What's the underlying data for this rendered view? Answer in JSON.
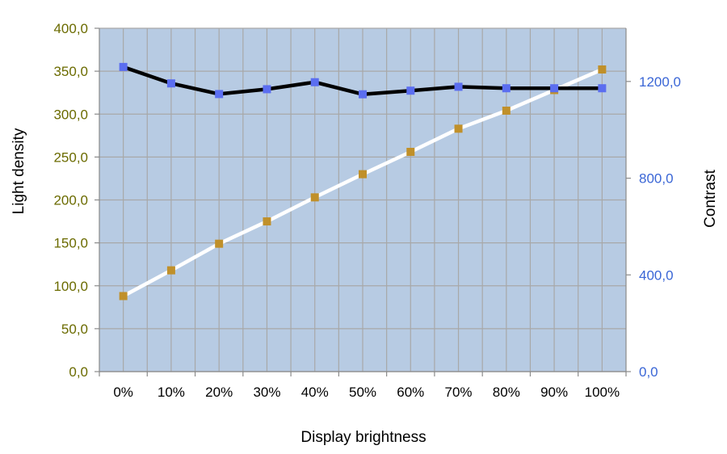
{
  "chart_data": {
    "type": "line",
    "categories": [
      "0%",
      "10%",
      "20%",
      "30%",
      "40%",
      "50%",
      "60%",
      "70%",
      "80%",
      "90%",
      "100%"
    ],
    "xlabel": "Display brightness",
    "y_left": {
      "label": "Light density",
      "range": [
        0,
        400
      ],
      "ticks": [
        0,
        50,
        100,
        150,
        200,
        250,
        300,
        350,
        400
      ],
      "tick_labels": [
        "0,0",
        "50,0",
        "100,0",
        "150,0",
        "200,0",
        "250,0",
        "300,0",
        "350,0",
        "400,0"
      ],
      "tick_color": "#6b6b00"
    },
    "y_right": {
      "label": "Contrast",
      "range": [
        0,
        1420
      ],
      "ticks": [
        0,
        400,
        800,
        1200
      ],
      "tick_labels": [
        "0,0",
        "400,0",
        "800,0",
        "1200,0"
      ],
      "tick_color": "#3a66d6"
    },
    "series": [
      {
        "axis": "left",
        "values": [
          88,
          118,
          149,
          175,
          203,
          230,
          256,
          283,
          304,
          328,
          352
        ],
        "line_color": "#ffffff",
        "marker_color": "#c0902a"
      },
      {
        "axis": "right",
        "values": [
          1260,
          1192,
          1148,
          1168,
          1197,
          1147,
          1162,
          1178,
          1172,
          1172,
          1172
        ],
        "line_color": "#000000",
        "marker_color": "#5b6ef0"
      }
    ],
    "plot_background": "#b7cbe3",
    "grid": true,
    "grid_color": "#a8a8a8",
    "legend": "none"
  }
}
